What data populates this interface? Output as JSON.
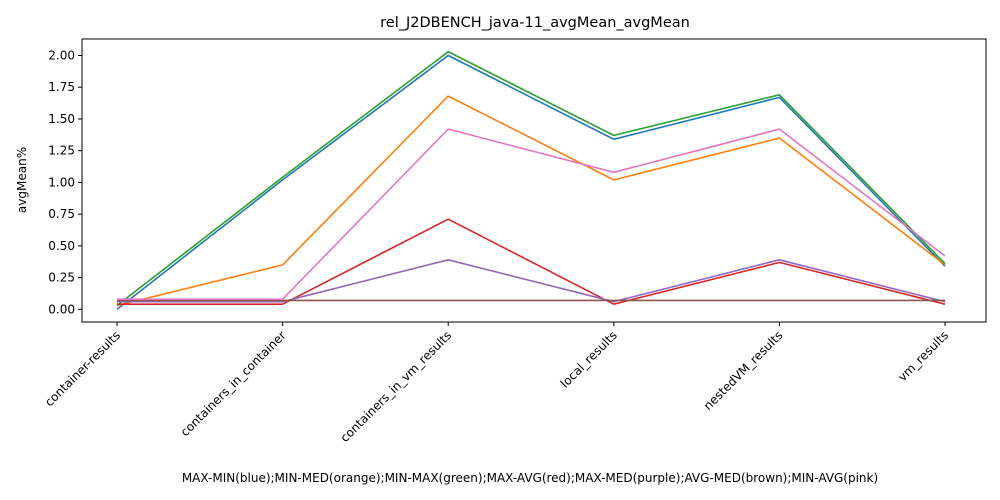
{
  "chart_data": {
    "type": "line",
    "title": "rel_J2DBENCH_java-11_avgMean_avgMean",
    "xlabel": "MAX-MIN(blue);MIN-MED(orange);MIN-MAX(green);MAX-AVG(red);MAX-MED(purple);AVG-MED(brown);MIN-AVG(pink)",
    "ylabel": "avgMean%",
    "categories": [
      "container-results",
      "containers_in_container",
      "containers_in_vm_results",
      "local_results",
      "nestedVM_results",
      "vm_results"
    ],
    "ylim": [
      -0.1,
      2.13
    ],
    "yticks": [
      "0.00",
      "0.25",
      "0.50",
      "0.75",
      "1.00",
      "1.25",
      "1.50",
      "1.75",
      "2.00"
    ],
    "grid": false,
    "series": [
      {
        "color": "#1f77b4",
        "values": [
          0.0,
          1.02,
          2.0,
          1.34,
          1.67,
          0.34
        ]
      },
      {
        "color": "#ff7f0e",
        "values": [
          0.03,
          0.35,
          1.68,
          1.02,
          1.35,
          0.35
        ]
      },
      {
        "color": "#2ca02c",
        "values": [
          0.03,
          1.04,
          2.03,
          1.37,
          1.69,
          0.36
        ]
      },
      {
        "color": "#d62728",
        "values": [
          0.04,
          0.04,
          0.71,
          0.04,
          0.37,
          0.04
        ]
      },
      {
        "color": "#9467bd",
        "values": [
          0.06,
          0.06,
          0.39,
          0.06,
          0.39,
          0.06
        ]
      },
      {
        "color": "#8c564b",
        "values": [
          0.07,
          0.07,
          0.07,
          0.07,
          0.07,
          0.07
        ]
      },
      {
        "color": "#e377c2",
        "values": [
          0.08,
          0.08,
          1.42,
          1.08,
          1.42,
          0.42
        ]
      }
    ]
  }
}
